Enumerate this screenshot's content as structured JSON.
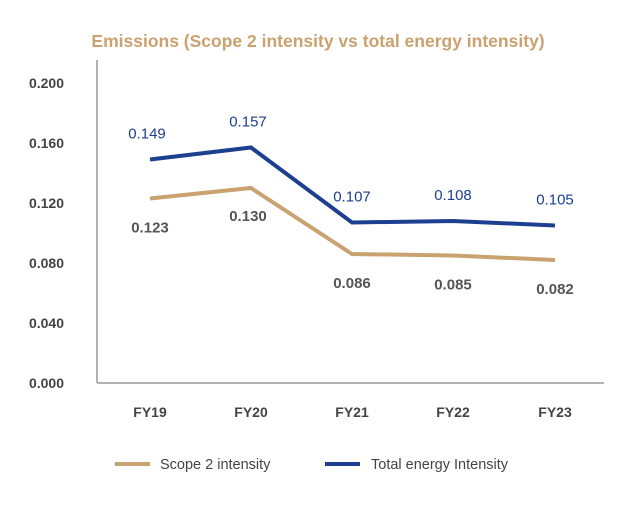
{
  "chart_data": {
    "type": "line",
    "title": "Emissions (Scope 2 intensity vs total energy intensity)",
    "categories": [
      "FY19",
      "FY20",
      "FY21",
      "FY22",
      "FY23"
    ],
    "ylim": [
      0,
      0.2
    ],
    "yticks": [
      "0.000",
      "0.040",
      "0.080",
      "0.120",
      "0.160",
      "0.200"
    ],
    "grid": false,
    "legend_position": "bottom",
    "series": [
      {
        "name": "Scope 2 intensity",
        "color": "#c9a26f",
        "values": [
          0.123,
          0.13,
          0.086,
          0.085,
          0.082
        ],
        "labels": [
          "0.123",
          "0.130",
          "0.086",
          "0.085",
          "0.082"
        ]
      },
      {
        "name": "Total energy Intensity",
        "color": "#1d3f8f",
        "values": [
          0.149,
          0.157,
          0.107,
          0.108,
          0.105
        ],
        "labels": [
          "0.149",
          "0.157",
          "0.107",
          "0.108",
          "0.105"
        ]
      }
    ]
  }
}
